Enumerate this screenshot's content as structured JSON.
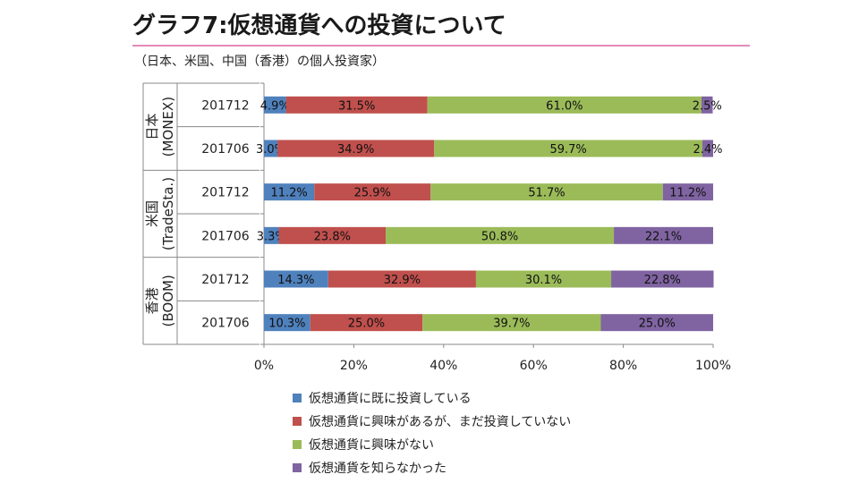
{
  "title": "グラフ7:仮想通貨への投資について",
  "subtitle": "（日本、米国、中国（香港）の個人投資家）",
  "chart_data": {
    "type": "bar",
    "orientation": "horizontal",
    "stacked": true,
    "percent": true,
    "xlim": [
      0,
      100
    ],
    "xticks": [
      "0%",
      "20%",
      "40%",
      "60%",
      "80%",
      "100%"
    ],
    "groups": [
      {
        "label": "日本\n(MONEX)",
        "rows": [
          "201712",
          "201706"
        ]
      },
      {
        "label": "米国\n(TradeSta.)",
        "rows": [
          "201712",
          "201706"
        ]
      },
      {
        "label": "香港\n(BOOM)",
        "rows": [
          "201712",
          "201706"
        ]
      }
    ],
    "categories": [
      "201712",
      "201706",
      "201712",
      "201706",
      "201712",
      "201706"
    ],
    "series": [
      {
        "name": "仮想通貨に既に投資している",
        "color": "#4f81bd",
        "values": [
          4.9,
          3.0,
          11.2,
          3.3,
          14.3,
          10.3
        ],
        "labels": [
          "4.9%",
          "3.0%",
          "11.2%",
          "3.3%",
          "14.3%",
          "10.3%"
        ]
      },
      {
        "name": "仮想通貨に興味があるが、まだ投資していない",
        "color": "#c0504d",
        "values": [
          31.5,
          34.9,
          25.9,
          23.8,
          32.9,
          25.0
        ],
        "labels": [
          "31.5%",
          "34.9%",
          "25.9%",
          "23.8%",
          "32.9%",
          "25.0%"
        ]
      },
      {
        "name": "仮想通貨に興味がない",
        "color": "#9bbb59",
        "values": [
          61.0,
          59.7,
          51.7,
          50.8,
          30.1,
          39.7
        ],
        "labels": [
          "61.0%",
          "59.7%",
          "51.7%",
          "50.8%",
          "30.1%",
          "39.7%"
        ]
      },
      {
        "name": "仮想通貨を知らなかった",
        "color": "#8064a2",
        "values": [
          2.5,
          2.4,
          11.2,
          22.1,
          22.8,
          25.0
        ],
        "labels": [
          "2.5%",
          "2.4%",
          "11.2%",
          "22.1%",
          "22.8%",
          "25.0%"
        ]
      }
    ]
  }
}
